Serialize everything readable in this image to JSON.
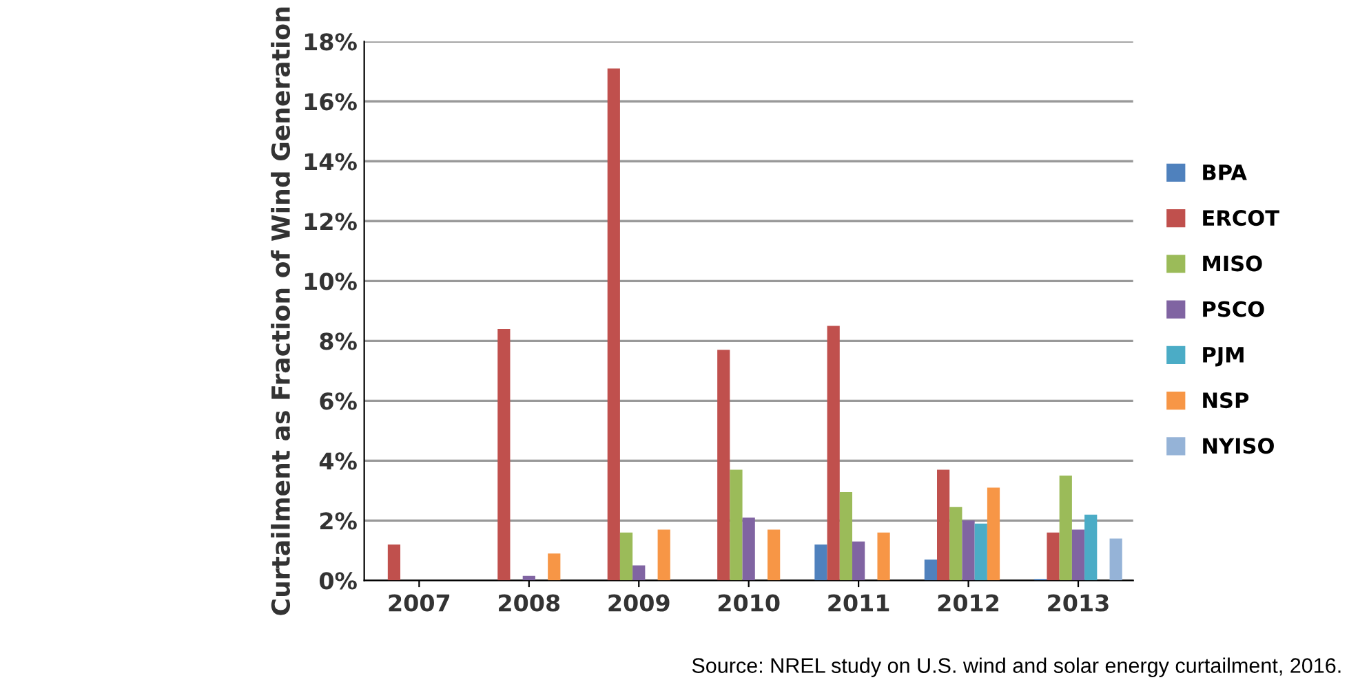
{
  "chart_data": {
    "type": "bar",
    "ylabel": "Curtailment as Fraction of Wind Generation",
    "categories": [
      "2007",
      "2008",
      "2009",
      "2010",
      "2011",
      "2012",
      "2013"
    ],
    "series": [
      {
        "name": "BPA",
        "color": "#4f81bd",
        "values": [
          null,
          null,
          null,
          null,
          1.2,
          0.7,
          0.05
        ]
      },
      {
        "name": "ERCOT",
        "color": "#c0504d",
        "values": [
          1.2,
          8.4,
          17.1,
          7.7,
          8.5,
          3.7,
          1.6
        ]
      },
      {
        "name": "MISO",
        "color": "#9bbb59",
        "values": [
          null,
          null,
          1.6,
          3.7,
          2.95,
          2.45,
          3.5
        ]
      },
      {
        "name": "PSCO",
        "color": "#8064a2",
        "values": [
          null,
          0.15,
          0.5,
          2.1,
          1.3,
          2.0,
          1.7
        ]
      },
      {
        "name": "PJM",
        "color": "#4bacc6",
        "values": [
          null,
          null,
          null,
          null,
          null,
          1.9,
          2.2
        ]
      },
      {
        "name": "NSP",
        "color": "#f79646",
        "values": [
          null,
          0.9,
          1.7,
          1.7,
          1.6,
          3.1,
          null
        ]
      },
      {
        "name": "NYISO",
        "color": "#95b3d7",
        "values": [
          null,
          null,
          null,
          null,
          null,
          null,
          1.4
        ]
      }
    ],
    "ylim": [
      0,
      18
    ],
    "yticks": [
      {
        "value": 0,
        "label": "0%"
      },
      {
        "value": 2,
        "label": "2%"
      },
      {
        "value": 4,
        "label": "4%"
      },
      {
        "value": 6,
        "label": "6%"
      },
      {
        "value": 8,
        "label": "8%"
      },
      {
        "value": 10,
        "label": "10%"
      },
      {
        "value": 12,
        "label": "12%"
      },
      {
        "value": 14,
        "label": "14%"
      },
      {
        "value": 16,
        "label": "16%"
      },
      {
        "value": 18,
        "label": "18%"
      }
    ],
    "grid": "y",
    "legend": "right",
    "annotations": [
      "Source: NREL study on U.S. wind and solar energy curtailment, 2016."
    ]
  }
}
